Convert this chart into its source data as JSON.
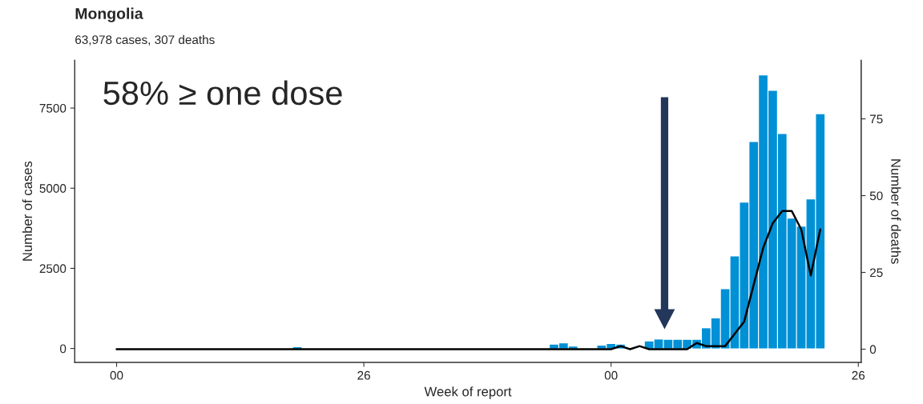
{
  "chart_data": {
    "type": "bar",
    "title": "Mongolia",
    "subtitle": "63,978 cases, 307 deaths",
    "xlabel": "Week of report",
    "ylabel": "Number of cases",
    "y2label": "Number of deaths",
    "annotations": [
      "58% ≥ one dose"
    ],
    "categories": [
      "00",
      null,
      null,
      null,
      null,
      null,
      null,
      null,
      null,
      null,
      null,
      null,
      null,
      null,
      null,
      null,
      null,
      null,
      null,
      null,
      null,
      null,
      null,
      null,
      null,
      null,
      "26",
      null,
      null,
      null,
      null,
      null,
      null,
      null,
      null,
      null,
      null,
      null,
      null,
      null,
      null,
      null,
      null,
      null,
      null,
      null,
      null,
      null,
      null,
      null,
      null,
      null,
      "00",
      null,
      null,
      null,
      null,
      null,
      null,
      null,
      null,
      null,
      null,
      null,
      null,
      null,
      null,
      null,
      null,
      null,
      null,
      null,
      null,
      null,
      null,
      null,
      null,
      null,
      "26"
    ],
    "series": [
      {
        "color": "#0090d6",
        "values": [
          0,
          0,
          0,
          0,
          0,
          0,
          0,
          0,
          0,
          0,
          0,
          0,
          0,
          0,
          0,
          0,
          0,
          0,
          0,
          40,
          0,
          0,
          0,
          0,
          0,
          0,
          0,
          0,
          0,
          0,
          0,
          0,
          0,
          0,
          0,
          0,
          0,
          0,
          0,
          0,
          0,
          0,
          0,
          0,
          0,
          0,
          120,
          160,
          60,
          0,
          0,
          90,
          140,
          120,
          null,
          null,
          220,
          280,
          270,
          270,
          270,
          270,
          630,
          940,
          1850,
          2870,
          4550,
          6440,
          8520,
          8040,
          6690,
          4050,
          3800,
          4650,
          7310,
          null,
          null,
          null,
          null
        ]
      },
      {
        "type": "line",
        "axis": "y2",
        "color": "#000000",
        "values": [
          0,
          0,
          0,
          0,
          0,
          0,
          0,
          0,
          0,
          0,
          0,
          0,
          0,
          0,
          0,
          0,
          0,
          0,
          0,
          0,
          0,
          0,
          0,
          0,
          0,
          0,
          0,
          0,
          0,
          0,
          0,
          0,
          0,
          0,
          0,
          0,
          0,
          0,
          0,
          0,
          0,
          0,
          0,
          0,
          0,
          0,
          0,
          0,
          0,
          0,
          0,
          0,
          0,
          1,
          0,
          1,
          0,
          0,
          0,
          0,
          0,
          2,
          1,
          1,
          1,
          5,
          9,
          21,
          33,
          41,
          45,
          45,
          39,
          24,
          39,
          null,
          null,
          null,
          null
        ]
      }
    ],
    "ylim": [
      -434,
      8993
    ],
    "yticks": [
      0,
      2500,
      5000,
      7500
    ],
    "y2lim": [
      -4.3,
      94.1
    ],
    "y2ticks": [
      0,
      25,
      50,
      75
    ],
    "grid": false
  }
}
